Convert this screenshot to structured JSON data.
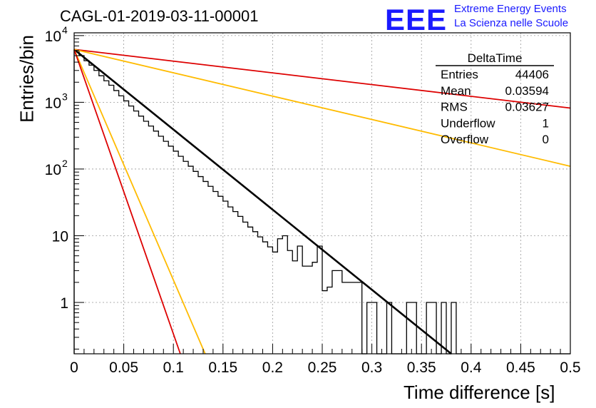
{
  "title": "CAGL-01-2019-03-11-00001",
  "logo": {
    "text": "EEE",
    "line1": "Extreme Energy Events",
    "line2": "La Scienza nelle Scuole",
    "color": "#1a1aff"
  },
  "stats": {
    "name": "DeltaTime",
    "rows": [
      {
        "label": "Entries",
        "value": "44406"
      },
      {
        "label": "Mean",
        "value": "0.03594"
      },
      {
        "label": "RMS",
        "value": "0.03627"
      },
      {
        "label": "Underflow",
        "value": "1"
      },
      {
        "label": "Overflow",
        "value": "0"
      }
    ]
  },
  "chart_data": {
    "type": "histogram",
    "xlabel": "Time difference [s]",
    "ylabel": "Entries/bin",
    "xlim": [
      0,
      0.5
    ],
    "ylim": [
      0.17,
      11000
    ],
    "yscale": "log",
    "grid": true,
    "x_ticks": [
      "0",
      "0.05",
      "0.1",
      "0.15",
      "0.2",
      "0.25",
      "0.3",
      "0.35",
      "0.4",
      "0.45",
      "0.5"
    ],
    "y_ticks": [
      {
        "value": 1,
        "base": "1",
        "exp": ""
      },
      {
        "value": 10,
        "base": "10",
        "exp": ""
      },
      {
        "value": 100,
        "base": "10",
        "exp": "2"
      },
      {
        "value": 1000,
        "base": "10",
        "exp": "3"
      },
      {
        "value": 10000,
        "base": "10",
        "exp": "4"
      }
    ],
    "bin_width": 0.005,
    "bin_contents": [
      6000,
      5000,
      4200,
      3600,
      3000,
      2500,
      2100,
      1800,
      1500,
      1250,
      1050,
      880,
      740,
      620,
      520,
      440,
      370,
      310,
      260,
      220,
      185,
      155,
      130,
      110,
      92,
      77,
      65,
      55,
      46,
      39,
      33,
      27,
      23,
      19.5,
      16,
      13.5,
      11.5,
      9.6,
      8.1,
      6.8,
      5.7,
      9,
      10,
      6,
      4.2,
      7,
      3.5,
      3.5,
      4,
      7,
      1.5,
      1.7,
      3,
      3,
      2,
      2,
      2,
      2,
      0,
      1,
      1,
      0,
      0,
      1,
      0,
      0,
      0,
      1,
      1,
      0,
      0,
      1,
      1,
      0,
      1,
      0,
      1,
      0,
      0,
      0,
      0,
      0,
      0,
      0,
      0,
      0,
      0,
      0,
      0,
      0,
      0,
      0,
      0,
      0,
      0,
      0,
      0,
      0,
      0,
      0
    ],
    "series": [
      {
        "name": "",
        "type": "exponential",
        "color": "#000000",
        "x": [
          0,
          0.38
        ],
        "y": [
          6200,
          0.17
        ]
      },
      {
        "name": "",
        "type": "exponential",
        "color": "#dd0000",
        "x": [
          0,
          0.5
        ],
        "y": [
          6200,
          820
        ]
      },
      {
        "name": "",
        "type": "exponential",
        "color": "#ffbb00",
        "x": [
          0,
          0.5
        ],
        "y": [
          6200,
          110
        ]
      },
      {
        "name": "",
        "type": "exponential",
        "color": "#ffbb00",
        "x": [
          0,
          0.132
        ],
        "y": [
          6200,
          0.17
        ]
      },
      {
        "name": "",
        "type": "exponential",
        "color": "#dd0000",
        "x": [
          0,
          0.107
        ],
        "y": [
          6200,
          0.17
        ]
      }
    ]
  }
}
